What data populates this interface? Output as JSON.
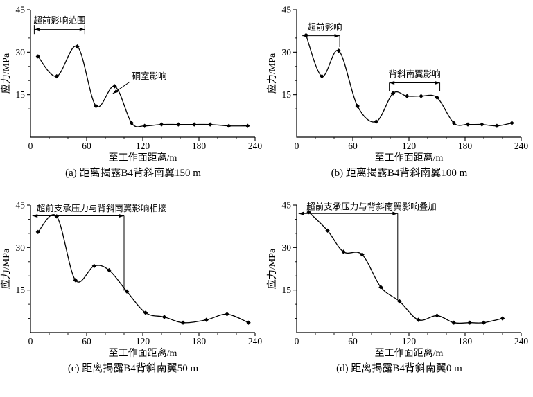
{
  "figure": {
    "background": "#ffffff",
    "line_color": "#000000",
    "xlabel": "至工作面距离/m",
    "ylabel": "应力/MPa",
    "x_ticks": [
      0,
      60,
      120,
      180,
      240
    ],
    "x_minor_ticks": [
      20,
      40,
      80,
      100,
      140,
      160,
      200,
      220
    ],
    "y_ticks": [
      15,
      30,
      45
    ],
    "y_minor_ticks": [
      5,
      10,
      20,
      25,
      35,
      40
    ],
    "xlim": [
      0,
      240
    ],
    "ylim": [
      0,
      45
    ]
  },
  "chart_data": [
    {
      "id": "a",
      "type": "line",
      "caption": "(a) 距离揭露B4背斜南翼150 m",
      "xlabel": "至工作面距离/m",
      "ylabel": "应力/MPa",
      "xlim": [
        0,
        240
      ],
      "ylim": [
        0,
        45
      ],
      "x": [
        8,
        28,
        50,
        70,
        90,
        108,
        122,
        140,
        158,
        175,
        192,
        212,
        232
      ],
      "y": [
        28.5,
        21.5,
        32,
        11,
        18,
        5,
        4,
        4.5,
        4.5,
        4.5,
        4.5,
        4,
        4
      ],
      "annotations": [
        {
          "kind": "span",
          "label": "超前影响范围",
          "label_x": 31,
          "label_y": 41.2,
          "x1": 4,
          "x2": 58,
          "y": 38,
          "vlines": [
            {
              "x": 4,
              "y1": 39.6,
              "y2": 36.4
            },
            {
              "x": 58,
              "y1": 39.6,
              "y2": 36.4
            }
          ]
        },
        {
          "kind": "pointer",
          "label": "硐室影响",
          "label_x": 127,
          "label_y": 21.5,
          "x1": 106,
          "y1": 19.5,
          "x2": 88,
          "y2": 15.4
        }
      ]
    },
    {
      "id": "b",
      "type": "line",
      "caption": "(b) 距离揭露B4背斜南翼100 m",
      "xlabel": "至工作面距离/m",
      "ylabel": "应力/MPa",
      "xlim": [
        0,
        240
      ],
      "ylim": [
        0,
        45
      ],
      "x": [
        10,
        27,
        45,
        65,
        85,
        103,
        118,
        133,
        150,
        168,
        183,
        198,
        214,
        230
      ],
      "y": [
        36,
        21.5,
        30.5,
        11,
        5.5,
        15.5,
        14.5,
        14.5,
        14,
        5,
        4.5,
        4.5,
        4,
        5
      ],
      "annotations": [
        {
          "kind": "span",
          "label": "超前影响",
          "label_x": 30,
          "label_y": 38.8,
          "x1": 6,
          "x2": 46,
          "y": 35.8,
          "vlines": [
            {
              "x": 46,
              "y1": 35.8,
              "y2": 31.8
            }
          ]
        },
        {
          "kind": "span",
          "label": "背斜南翼影响",
          "label_x": 126,
          "label_y": 22.3,
          "x1": 99,
          "x2": 153,
          "y": 19.2,
          "vlines": [
            {
              "x": 99,
              "y1": 19.2,
              "y2": 16.2
            },
            {
              "x": 153,
              "y1": 19.2,
              "y2": 16.2
            }
          ]
        }
      ]
    },
    {
      "id": "c",
      "type": "line",
      "caption": "(c) 距离揭露B4背斜南翼50 m",
      "xlabel": "至工作面距离/m",
      "ylabel": "应力/MPa",
      "xlim": [
        0,
        240
      ],
      "ylim": [
        0,
        45
      ],
      "x": [
        8,
        28,
        48,
        68,
        84,
        103,
        123,
        143,
        163,
        188,
        210,
        233
      ],
      "y": [
        35.5,
        41,
        18.5,
        23.5,
        22,
        14.5,
        7,
        5.5,
        3.5,
        4.5,
        6.5,
        3.5
      ],
      "annotations": [
        {
          "kind": "span",
          "label": "超前支承压力与背斜南翼影响相接",
          "label_x": 76,
          "label_y": 43.8,
          "x1": 2,
          "x2": 100,
          "y": 41.2,
          "vlines": [
            {
              "x": 100,
              "y1": 41.2,
              "y2": 14.8
            }
          ]
        }
      ]
    },
    {
      "id": "d",
      "type": "line",
      "caption": "(d) 距离揭露B4背斜南翼0 m",
      "xlabel": "至工作面距离/m",
      "ylabel": "应力/MPa",
      "xlim": [
        0,
        240
      ],
      "ylim": [
        0,
        45
      ],
      "x": [
        13,
        33,
        50,
        70,
        90,
        110,
        130,
        150,
        168,
        185,
        200,
        220
      ],
      "y": [
        42.5,
        36,
        28.5,
        27.5,
        16,
        11,
        4.5,
        6,
        3.5,
        3.5,
        3.5,
        5
      ],
      "annotations": [
        {
          "kind": "span",
          "label": "超前支承压力与背斜南翼影响叠加",
          "label_x": 80,
          "label_y": 44.4,
          "x1": 2,
          "x2": 108,
          "y": 42,
          "vlines": [
            {
              "x": 108,
              "y1": 42,
              "y2": 12
            }
          ]
        }
      ]
    }
  ]
}
